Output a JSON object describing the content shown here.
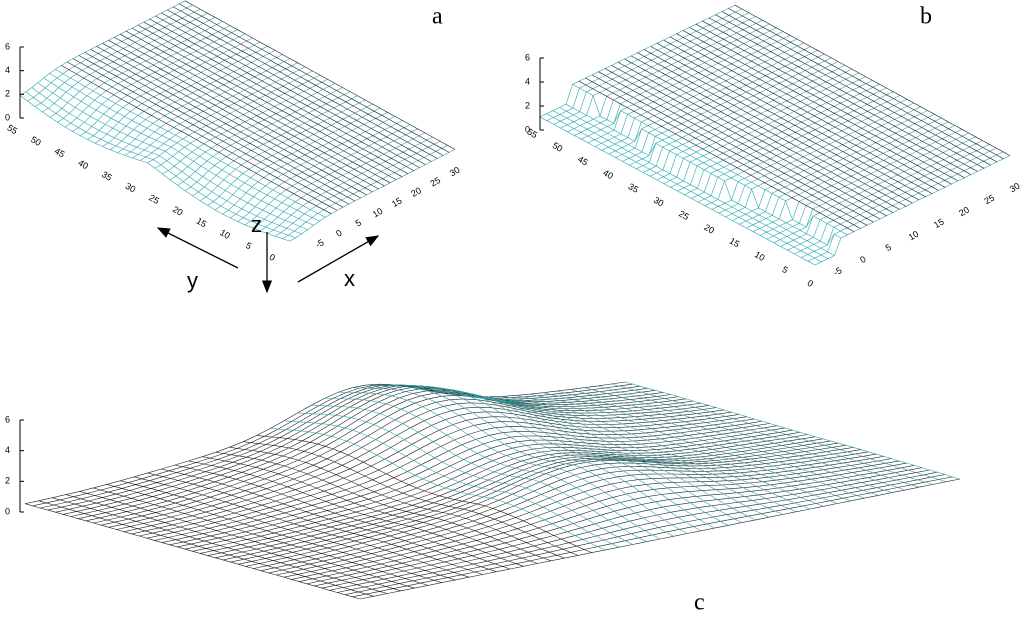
{
  "panels": [
    {
      "label": "a",
      "z_ticks": [
        "0",
        "2",
        "4",
        "6"
      ],
      "y_ticks": [
        "55",
        "50",
        "45",
        "40",
        "35",
        "30",
        "25",
        "20",
        "15",
        "10",
        "5",
        "0"
      ],
      "x_ticks": [
        "-5",
        "0",
        "5",
        "10",
        "15",
        "20",
        "25",
        "30"
      ],
      "axis_labels": {
        "z": "z",
        "y": "y",
        "x": "x"
      }
    },
    {
      "label": "b",
      "z_ticks": [
        "0",
        "2",
        "4",
        "6"
      ],
      "y_ticks": [
        "55",
        "50",
        "45",
        "40",
        "35",
        "30",
        "25",
        "20",
        "15",
        "10",
        "5",
        "0"
      ],
      "x_ticks": [
        "-5",
        "0",
        "5",
        "10",
        "15",
        "20",
        "25",
        "30"
      ]
    },
    {
      "label": "c",
      "z_ticks": [
        "0",
        "2",
        "4",
        "6"
      ]
    }
  ]
}
